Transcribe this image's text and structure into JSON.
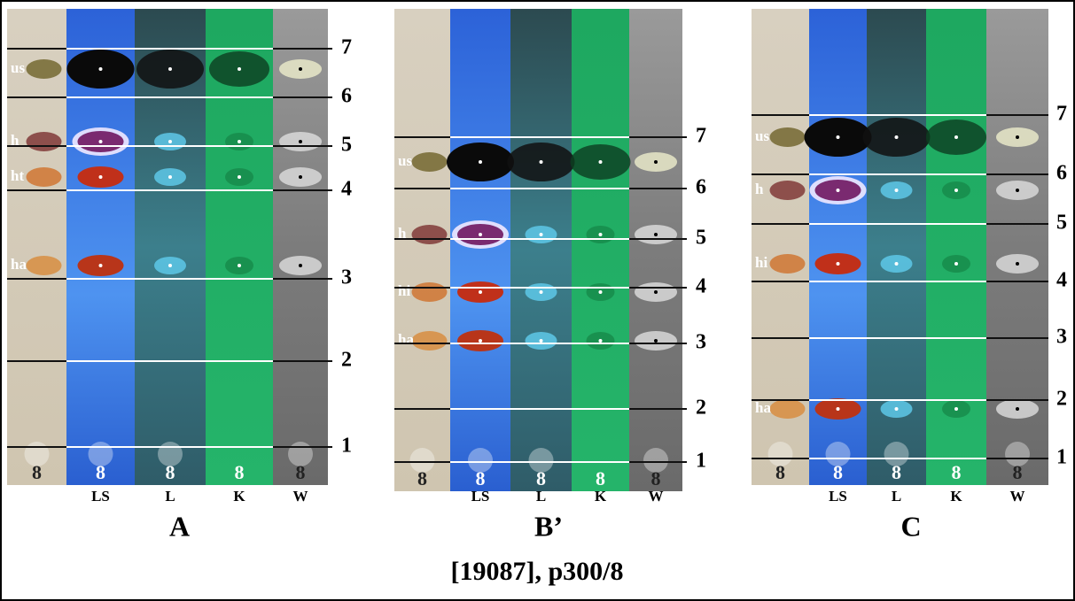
{
  "caption": "[19087], p300/8",
  "panels": [
    {
      "label": "A",
      "columns": [
        "LS",
        "L",
        "K",
        "W"
      ],
      "zone_numbers": [
        7,
        6,
        5,
        4,
        3,
        2,
        1
      ],
      "spot_labels": [
        "us",
        "h",
        "ht",
        "ha"
      ],
      "origin_marks": [
        8,
        8,
        8,
        8,
        8
      ]
    },
    {
      "label": "B’",
      "columns": [
        "LS",
        "L",
        "K",
        "W"
      ],
      "zone_numbers": [
        7,
        6,
        5,
        4,
        3,
        2,
        1
      ],
      "spot_labels": [
        "us",
        "h",
        "hi",
        "ha"
      ],
      "origin_marks": [
        8,
        8,
        8,
        8,
        8
      ]
    },
    {
      "label": "C",
      "columns": [
        "LS",
        "L",
        "K",
        "W"
      ],
      "zone_numbers": [
        7,
        6,
        5,
        4,
        3,
        2,
        1
      ],
      "spot_labels": [
        "us",
        "h",
        "hi",
        "ha"
      ],
      "origin_marks": [
        8,
        8,
        8,
        8,
        8
      ]
    }
  ]
}
